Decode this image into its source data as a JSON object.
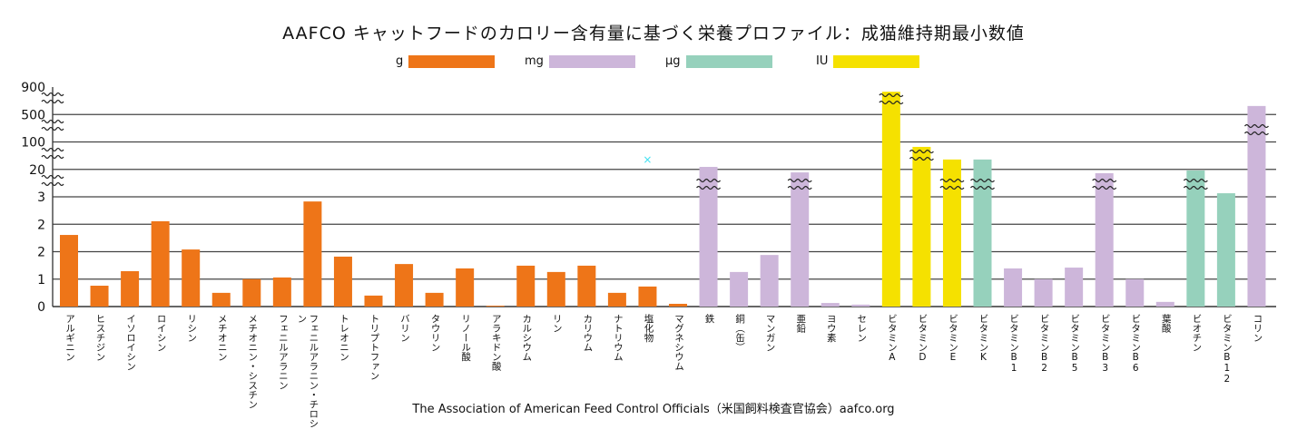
{
  "chart_data": {
    "type": "bar",
    "title": "AAFCO キャットフードのカロリー含有量に基づく栄養プロファイル：成猫維持期最小数値",
    "source": "The Association of American Feed Control Officials（米国飼料検査官協会）aafco.org",
    "xlabel": "",
    "ylabel": "",
    "grid": true,
    "legend_position": "top",
    "y_axis": {
      "scale": "segmented-broken",
      "tick_labels": [
        "0",
        "1",
        "2",
        "2",
        "3",
        "20",
        "100",
        "500",
        "900"
      ],
      "note": "values below are positions in axis tick-index units (0 = '0', 8 = '900')",
      "range": [
        0,
        8
      ]
    },
    "units": [
      {
        "name": "g",
        "color": "#ee7518"
      },
      {
        "name": "mg",
        "color": "#cdb6da"
      },
      {
        "name": "μg",
        "color": "#96d1bc"
      },
      {
        "name": "IU",
        "color": "#f5e100"
      }
    ],
    "categories": [
      "アルギニン",
      "ヒスチジン",
      "イソロイシン",
      "ロイシン",
      "リシン",
      "メチオニン",
      "メチオニン・シスチン",
      "フェニルアラニン",
      "フェニルアラニン・チロシン",
      "トレオニン",
      "トリプトファン",
      "バリン",
      "タウリン",
      "リノール酸",
      "アラキドン酸",
      "カルシウム",
      "リン",
      "カリウム",
      "ナトリウム",
      "塩化物",
      "マグネシウム",
      "鉄",
      "銅（缶）",
      "マンガン",
      "亜鉛",
      "ヨウ素",
      "セレン",
      "ビタミンA",
      "ビタミンD",
      "ビタミンE",
      "ビタミンK",
      "ビタミンB1",
      "ビタミンB2",
      "ビタミンB5",
      "ビタミンB3",
      "ビタミンB6",
      "葉酸",
      "ビオチン",
      "ビタミンB12",
      "コリン"
    ],
    "unit_of_category": [
      "g",
      "g",
      "g",
      "g",
      "g",
      "g",
      "g",
      "g",
      "g",
      "g",
      "g",
      "g",
      "g",
      "g",
      "g",
      "g",
      "g",
      "g",
      "g",
      "g",
      "g",
      "mg",
      "mg",
      "mg",
      "mg",
      "mg",
      "mg",
      "IU",
      "IU",
      "IU",
      "μg",
      "mg",
      "mg",
      "mg",
      "mg",
      "mg",
      "mg",
      "μg",
      "μg",
      "mg"
    ],
    "values": [
      2.61,
      0.76,
      1.29,
      3.11,
      2.08,
      0.5,
      1.0,
      1.06,
      3.83,
      1.82,
      0.4,
      1.55,
      0.5,
      1.39,
      0.03,
      1.49,
      1.26,
      1.49,
      0.5,
      0.73,
      0.1,
      5.09,
      1.26,
      1.88,
      4.89,
      0.13,
      0.07,
      7.83,
      5.82,
      5.36,
      5.36,
      1.39,
      1.0,
      1.42,
      4.86,
      1.0,
      0.17,
      4.96,
      4.13,
      7.31
    ],
    "broken_bars": [
      "鉄",
      "亜鉛",
      "ビタミンA",
      "ビタミンD",
      "ビタミンE",
      "ビタミンK",
      "ビタミンB3",
      "ビオチン",
      "コリン"
    ],
    "annotations": [
      {
        "text": "×",
        "near": "塩化物",
        "color": "#3fe0f0"
      }
    ]
  }
}
